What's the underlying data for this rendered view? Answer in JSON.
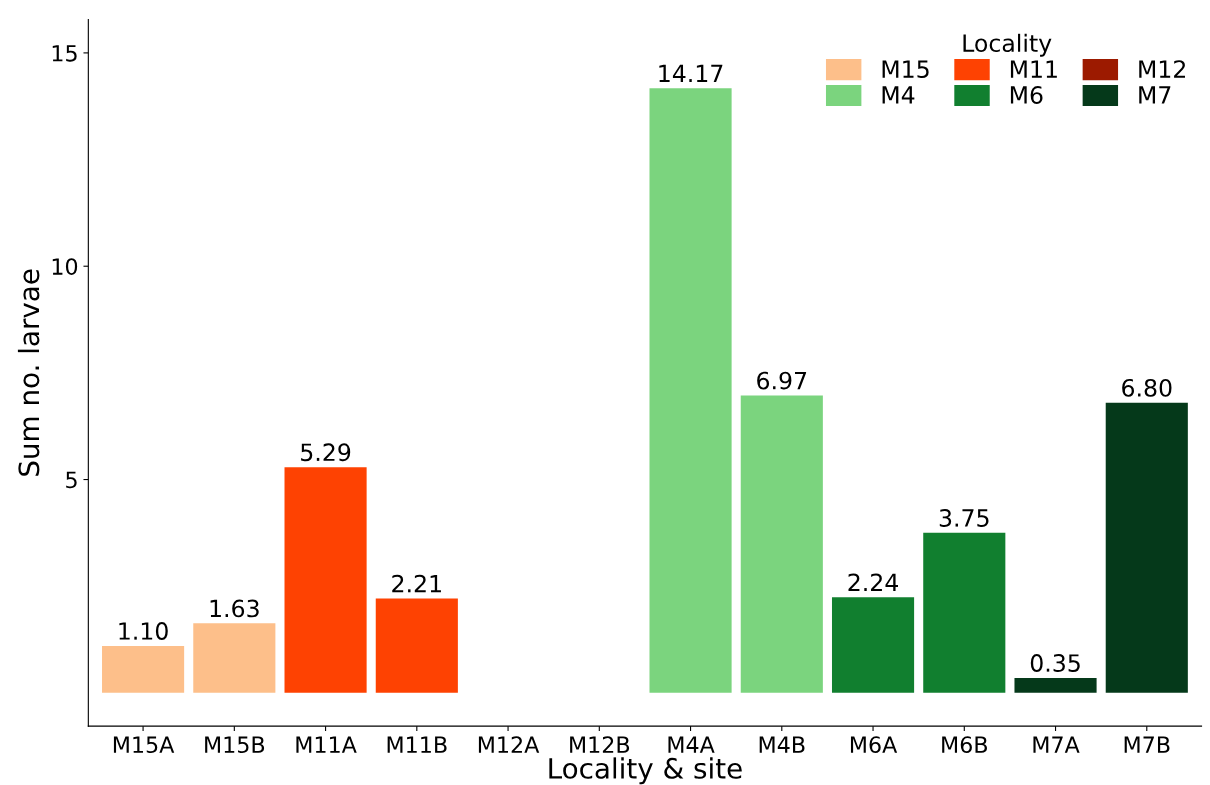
{
  "chart_data": {
    "type": "bar",
    "xlabel": "Locality & site",
    "ylabel": "Sum no. larvae",
    "legend_title": "Locality",
    "legend": "top right",
    "grid": false,
    "categories": [
      "M15A",
      "M15B",
      "M11A",
      "M11B",
      "M12A",
      "M12B",
      "M4A",
      "M4B",
      "M6A",
      "M6B",
      "M7A",
      "M7B"
    ],
    "ylim": [
      -0.78,
      15.78
    ],
    "yticks": [
      5,
      10,
      15
    ],
    "series": [
      {
        "name": "M15",
        "color": "#fdbf8a",
        "values": [
          1.1,
          1.63,
          null,
          null,
          null,
          null,
          null,
          null,
          null,
          null,
          null,
          null
        ],
        "value_labels": [
          "1.10",
          "1.63",
          null,
          null,
          null,
          null,
          null,
          null,
          null,
          null,
          null,
          null
        ]
      },
      {
        "name": "M11",
        "color": "#fe4202",
        "values": [
          null,
          null,
          5.29,
          2.21,
          null,
          null,
          null,
          null,
          null,
          null,
          null,
          null
        ],
        "value_labels": [
          null,
          null,
          "5.29",
          "2.21",
          null,
          null,
          null,
          null,
          null,
          null,
          null,
          null
        ]
      },
      {
        "name": "M12",
        "color": "#9c1a00",
        "values": [
          null,
          null,
          null,
          null,
          null,
          null,
          null,
          null,
          null,
          null,
          null,
          null
        ]
      },
      {
        "name": "M4",
        "color": "#7bd47e",
        "values": [
          null,
          null,
          null,
          null,
          null,
          null,
          14.17,
          6.97,
          null,
          null,
          null,
          null
        ],
        "value_labels": [
          null,
          null,
          null,
          null,
          null,
          null,
          "14.17",
          "6.97",
          null,
          null,
          null,
          null
        ]
      },
      {
        "name": "M6",
        "color": "#117f2f",
        "values": [
          null,
          null,
          null,
          null,
          null,
          null,
          null,
          null,
          2.24,
          3.75,
          null,
          null
        ],
        "value_labels": [
          null,
          null,
          null,
          null,
          null,
          null,
          null,
          null,
          "2.24",
          "3.75",
          null,
          null
        ]
      },
      {
        "name": "M7",
        "color": "#05391a",
        "values": [
          null,
          null,
          null,
          null,
          null,
          null,
          null,
          null,
          null,
          null,
          0.35,
          6.8
        ],
        "value_labels": [
          null,
          null,
          null,
          null,
          null,
          null,
          null,
          null,
          null,
          null,
          "0.35",
          "6.80"
        ]
      }
    ]
  }
}
